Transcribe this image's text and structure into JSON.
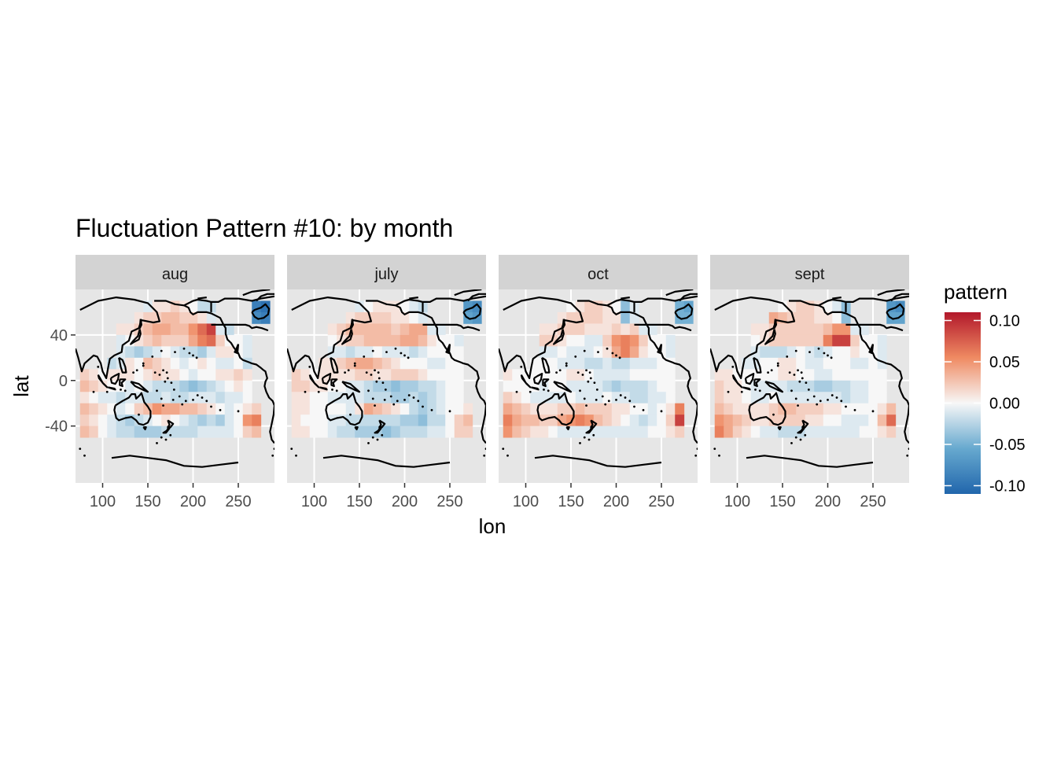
{
  "chart_data": {
    "type": "heatmap",
    "title": "Fluctuation Pattern #10: by month",
    "xlabel": "lon",
    "ylabel": "lat",
    "panels": [
      "aug",
      "july",
      "oct",
      "sept"
    ],
    "xlim": [
      70,
      290
    ],
    "ylim": [
      -90,
      80
    ],
    "x_ticks": [
      100,
      150,
      200,
      250
    ],
    "y_ticks": [
      40,
      0,
      -40
    ],
    "cell_width_lon": 10,
    "cell_height_lat": 10,
    "grid_lon_start": 75,
    "grid_lat_top": 70,
    "legend": {
      "title": "pattern",
      "ticks": [
        "0.10",
        "0.05",
        "0.00",
        "-0.05",
        "-0.10"
      ],
      "limits": [
        -0.11,
        0.11
      ],
      "placement": "right"
    },
    "colors": {
      "low": "#2166ac",
      "mid": "#f7f7f7",
      "high": "#b2182b",
      "panel_bg": "#e6e6e6",
      "strip_bg": "#d3d3d3",
      "grid": "#ffffff",
      "coast": "#000000"
    },
    "cells": {
      "aug": [
        [
          null,
          null,
          null,
          null,
          null,
          null,
          null,
          -0.01,
          0.01,
          0.01,
          0.02,
          0.01,
          0.0,
          -0.02,
          -0.02,
          null,
          null,
          null,
          null,
          -0.09,
          -0.1
        ],
        [
          null,
          null,
          null,
          null,
          null,
          null,
          0.01,
          0.02,
          0.02,
          0.03,
          0.03,
          0.02,
          0.02,
          0.01,
          -0.01,
          null,
          null,
          null,
          null,
          -0.08,
          -0.09
        ],
        [
          null,
          null,
          null,
          null,
          0.01,
          0.01,
          0.02,
          0.03,
          0.04,
          0.04,
          0.03,
          0.03,
          0.05,
          0.07,
          0.09,
          -0.01,
          -0.02,
          null,
          null,
          null,
          null
        ],
        [
          null,
          null,
          null,
          null,
          -0.01,
          0.0,
          0.01,
          0.02,
          0.03,
          0.02,
          0.02,
          0.02,
          0.04,
          0.06,
          0.07,
          0.02,
          0.0,
          0.0,
          -0.01,
          null,
          null
        ],
        [
          null,
          null,
          null,
          null,
          -0.01,
          -0.02,
          -0.03,
          -0.02,
          -0.01,
          0.0,
          -0.01,
          -0.02,
          -0.02,
          -0.03,
          -0.01,
          0.01,
          0.01,
          0.0,
          -0.01,
          null,
          null
        ],
        [
          null,
          null,
          null,
          -0.02,
          -0.01,
          0.01,
          0.0,
          0.03,
          0.02,
          0.01,
          0.0,
          -0.01,
          0.0,
          0.01,
          0.0,
          -0.01,
          -0.01,
          0.0,
          -0.02,
          null,
          null
        ],
        [
          0.02,
          0.01,
          0.0,
          0.01,
          0.01,
          0.01,
          0.0,
          0.01,
          0.02,
          0.01,
          0.01,
          0.0,
          -0.01,
          0.0,
          0.0,
          0.01,
          0.01,
          0.02,
          0.01,
          null,
          null
        ],
        [
          0.03,
          0.02,
          0.01,
          0.0,
          0.0,
          -0.01,
          0.0,
          -0.01,
          -0.02,
          -0.02,
          -0.02,
          -0.03,
          -0.04,
          -0.03,
          -0.02,
          -0.01,
          0.0,
          0.01,
          0.0,
          null,
          null
        ],
        [
          0.01,
          0.0,
          -0.01,
          -0.01,
          -0.02,
          -0.01,
          -0.01,
          -0.02,
          -0.02,
          -0.01,
          -0.02,
          -0.02,
          -0.01,
          -0.01,
          -0.01,
          -0.02,
          -0.01,
          -0.01,
          0.0,
          null,
          null
        ],
        [
          0.03,
          0.02,
          0.01,
          0.0,
          -0.01,
          0.0,
          0.02,
          0.03,
          0.05,
          0.04,
          0.04,
          0.03,
          0.03,
          0.02,
          0.01,
          0.0,
          -0.01,
          0.0,
          0.01,
          0.02,
          null
        ],
        [
          0.02,
          0.01,
          0.0,
          -0.01,
          -0.02,
          -0.03,
          -0.02,
          -0.01,
          0.0,
          0.01,
          0.0,
          -0.01,
          -0.02,
          -0.03,
          -0.02,
          -0.03,
          -0.01,
          0.0,
          0.05,
          0.06,
          null
        ],
        [
          0.03,
          0.02,
          0.0,
          -0.01,
          -0.02,
          -0.02,
          -0.03,
          -0.03,
          -0.03,
          -0.02,
          -0.02,
          -0.02,
          -0.02,
          -0.01,
          -0.01,
          -0.01,
          -0.01,
          0.0,
          0.02,
          0.03,
          null
        ]
      ],
      "july": [
        [
          null,
          null,
          null,
          null,
          null,
          null,
          null,
          -0.01,
          0.0,
          0.01,
          0.01,
          0.01,
          0.0,
          -0.01,
          -0.02,
          null,
          null,
          null,
          null,
          -0.07,
          -0.08
        ],
        [
          null,
          null,
          null,
          null,
          null,
          null,
          0.01,
          0.02,
          0.02,
          0.02,
          0.02,
          0.01,
          0.01,
          0.0,
          -0.01,
          null,
          null,
          null,
          null,
          -0.06,
          -0.07
        ],
        [
          null,
          null,
          null,
          null,
          0.01,
          0.02,
          0.03,
          0.03,
          0.03,
          0.03,
          0.03,
          0.02,
          0.03,
          0.04,
          0.04,
          -0.01,
          -0.01,
          null,
          null,
          null,
          null
        ],
        [
          null,
          null,
          null,
          null,
          0.0,
          0.01,
          0.02,
          0.02,
          0.03,
          0.03,
          0.03,
          0.03,
          0.04,
          0.04,
          0.03,
          0.01,
          0.0,
          0.0,
          -0.01,
          null,
          null
        ],
        [
          null,
          null,
          null,
          null,
          -0.01,
          -0.01,
          -0.02,
          -0.01,
          -0.01,
          0.0,
          -0.01,
          -0.01,
          -0.01,
          -0.02,
          -0.01,
          0.0,
          0.0,
          0.0,
          0.0,
          null,
          null
        ],
        [
          null,
          null,
          null,
          0.01,
          0.01,
          0.02,
          0.03,
          0.04,
          0.04,
          0.03,
          0.02,
          0.01,
          0.0,
          0.0,
          0.0,
          -0.01,
          -0.01,
          0.0,
          0.0,
          null,
          null
        ],
        [
          0.02,
          0.01,
          0.0,
          0.01,
          0.01,
          0.01,
          0.01,
          0.02,
          0.02,
          0.01,
          0.01,
          0.02,
          0.02,
          0.02,
          0.01,
          0.0,
          0.0,
          0.0,
          0.0,
          null,
          null
        ],
        [
          0.02,
          0.02,
          0.01,
          0.01,
          0.0,
          0.0,
          -0.01,
          -0.01,
          -0.02,
          -0.03,
          -0.03,
          -0.04,
          -0.03,
          -0.03,
          -0.02,
          -0.02,
          -0.01,
          0.0,
          0.0,
          null,
          null
        ],
        [
          0.01,
          0.01,
          0.0,
          0.0,
          -0.01,
          -0.01,
          -0.01,
          -0.01,
          -0.02,
          -0.02,
          -0.02,
          -0.03,
          -0.03,
          -0.02,
          -0.03,
          -0.02,
          -0.01,
          0.0,
          0.0,
          null,
          null
        ],
        [
          0.01,
          0.01,
          0.0,
          0.0,
          0.0,
          0.0,
          -0.01,
          0.01,
          0.04,
          0.03,
          0.02,
          0.01,
          0.0,
          -0.02,
          -0.03,
          -0.02,
          -0.01,
          0.0,
          0.0,
          0.01,
          null
        ],
        [
          0.01,
          0.0,
          0.0,
          0.0,
          -0.01,
          -0.01,
          -0.02,
          -0.02,
          -0.02,
          -0.02,
          -0.02,
          -0.02,
          -0.03,
          -0.03,
          -0.04,
          -0.02,
          -0.02,
          0.0,
          0.02,
          0.03,
          null
        ],
        [
          0.01,
          0.01,
          0.0,
          0.0,
          -0.01,
          -0.02,
          -0.02,
          -0.03,
          -0.03,
          -0.03,
          -0.04,
          -0.03,
          -0.02,
          -0.02,
          -0.02,
          -0.01,
          -0.01,
          0.0,
          0.02,
          0.02,
          null
        ]
      ],
      "oct": [
        [
          null,
          null,
          null,
          null,
          null,
          null,
          null,
          0.0,
          0.01,
          0.02,
          0.02,
          0.01,
          0.0,
          -0.04,
          -0.01,
          null,
          null,
          null,
          null,
          -0.05,
          -0.06
        ],
        [
          null,
          null,
          null,
          null,
          null,
          null,
          0.01,
          0.02,
          0.02,
          0.02,
          0.02,
          0.01,
          0.01,
          -0.04,
          -0.01,
          null,
          null,
          null,
          null,
          -0.05,
          -0.05
        ],
        [
          null,
          null,
          null,
          null,
          0.01,
          0.01,
          0.02,
          0.02,
          0.02,
          0.01,
          0.01,
          0.01,
          0.02,
          0.01,
          0.02,
          -0.01,
          -0.01,
          null,
          null,
          null,
          null
        ],
        [
          null,
          null,
          null,
          null,
          0.02,
          0.02,
          0.01,
          0.0,
          0.0,
          -0.01,
          -0.01,
          0.02,
          0.05,
          0.06,
          0.05,
          0.02,
          0.0,
          0.0,
          -0.01,
          null,
          null
        ],
        [
          null,
          null,
          null,
          null,
          -0.01,
          -0.01,
          0.0,
          -0.01,
          -0.01,
          -0.01,
          0.0,
          0.01,
          0.04,
          0.06,
          0.04,
          0.01,
          0.0,
          0.0,
          -0.01,
          null,
          null
        ],
        [
          null,
          null,
          null,
          0.0,
          0.0,
          0.0,
          -0.01,
          -0.01,
          -0.01,
          -0.02,
          -0.02,
          -0.01,
          -0.02,
          -0.02,
          -0.01,
          -0.01,
          -0.01,
          0.0,
          0.0,
          null,
          null
        ],
        [
          0.01,
          0.0,
          0.0,
          0.0,
          0.0,
          0.0,
          0.0,
          0.01,
          0.01,
          0.0,
          -0.01,
          -0.01,
          -0.01,
          -0.01,
          0.0,
          0.0,
          0.0,
          0.0,
          0.0,
          null,
          null
        ],
        [
          0.0,
          0.0,
          0.0,
          0.0,
          -0.01,
          0.0,
          0.0,
          -0.01,
          -0.01,
          -0.01,
          -0.01,
          -0.02,
          -0.03,
          -0.02,
          -0.02,
          -0.02,
          -0.01,
          0.0,
          0.0,
          null,
          null
        ],
        [
          0.02,
          0.01,
          0.0,
          -0.01,
          -0.01,
          -0.01,
          -0.01,
          0.0,
          -0.01,
          -0.01,
          -0.01,
          0.0,
          -0.01,
          -0.01,
          -0.02,
          -0.02,
          -0.01,
          -0.01,
          0.0,
          null,
          null
        ],
        [
          0.04,
          0.03,
          0.02,
          0.01,
          0.01,
          0.01,
          0.02,
          0.02,
          0.03,
          0.02,
          0.02,
          0.02,
          0.01,
          0.01,
          0.0,
          0.0,
          -0.01,
          0.0,
          0.01,
          0.06,
          null
        ],
        [
          0.06,
          0.04,
          0.03,
          0.03,
          0.02,
          0.02,
          0.04,
          0.05,
          0.06,
          0.05,
          0.03,
          0.02,
          0.01,
          0.0,
          -0.01,
          -0.02,
          -0.01,
          0.0,
          0.02,
          0.09,
          null
        ],
        [
          0.05,
          0.03,
          0.02,
          0.01,
          0.01,
          0.0,
          -0.01,
          -0.01,
          -0.01,
          -0.01,
          -0.01,
          -0.01,
          -0.01,
          -0.01,
          -0.01,
          -0.01,
          0.0,
          0.0,
          0.01,
          0.02,
          null
        ]
      ],
      "sept": [
        [
          null,
          null,
          null,
          null,
          null,
          null,
          null,
          0.0,
          0.01,
          0.02,
          0.02,
          0.01,
          0.0,
          -0.01,
          -0.04,
          null,
          null,
          null,
          null,
          -0.07,
          -0.08
        ],
        [
          null,
          null,
          null,
          null,
          null,
          null,
          0.04,
          0.03,
          0.02,
          0.02,
          0.02,
          0.01,
          0.01,
          0.0,
          -0.04,
          null,
          null,
          null,
          null,
          -0.06,
          -0.06
        ],
        [
          null,
          null,
          null,
          null,
          0.01,
          0.01,
          0.02,
          0.02,
          0.02,
          0.02,
          0.02,
          0.02,
          0.03,
          0.05,
          0.05,
          -0.01,
          -0.01,
          null,
          null,
          null,
          null
        ],
        [
          null,
          null,
          null,
          null,
          0.0,
          0.01,
          0.02,
          0.02,
          0.02,
          0.02,
          0.02,
          0.02,
          0.06,
          0.09,
          0.09,
          0.02,
          0.0,
          0.0,
          -0.01,
          null,
          null
        ],
        [
          null,
          null,
          null,
          null,
          -0.01,
          -0.02,
          -0.02,
          -0.02,
          -0.01,
          0.0,
          -0.01,
          -0.02,
          -0.01,
          0.0,
          0.0,
          0.01,
          0.0,
          0.0,
          -0.01,
          null,
          null
        ],
        [
          null,
          null,
          null,
          -0.01,
          -0.01,
          0.0,
          0.0,
          0.01,
          0.01,
          0.0,
          -0.01,
          -0.01,
          0.0,
          0.0,
          0.0,
          -0.01,
          -0.01,
          0.0,
          -0.01,
          null,
          null
        ],
        [
          0.01,
          0.01,
          0.0,
          0.0,
          0.0,
          0.0,
          0.0,
          0.01,
          0.01,
          0.0,
          0.0,
          -0.01,
          -0.01,
          0.0,
          0.0,
          0.0,
          0.0,
          0.0,
          0.0,
          null,
          null
        ],
        [
          0.02,
          0.01,
          0.01,
          0.0,
          -0.01,
          -0.01,
          -0.01,
          -0.01,
          -0.02,
          -0.02,
          -0.02,
          -0.03,
          -0.03,
          -0.02,
          -0.02,
          -0.01,
          -0.01,
          0.0,
          0.0,
          null,
          null
        ],
        [
          0.02,
          0.01,
          0.01,
          0.0,
          -0.01,
          -0.01,
          0.0,
          -0.01,
          -0.01,
          -0.01,
          -0.01,
          -0.01,
          -0.01,
          -0.01,
          -0.02,
          -0.01,
          -0.01,
          0.0,
          0.0,
          null,
          null
        ],
        [
          0.03,
          0.02,
          0.01,
          0.01,
          0.01,
          0.01,
          0.02,
          0.03,
          0.03,
          0.02,
          0.02,
          0.02,
          0.01,
          0.01,
          0.0,
          0.0,
          0.0,
          0.0,
          0.01,
          0.03,
          null
        ],
        [
          0.05,
          0.04,
          0.03,
          0.02,
          0.01,
          0.01,
          0.02,
          0.02,
          0.02,
          0.02,
          0.01,
          0.01,
          0.0,
          0.0,
          -0.01,
          -0.01,
          -0.01,
          0.0,
          0.03,
          0.07,
          null
        ],
        [
          0.06,
          0.04,
          0.02,
          0.01,
          0.0,
          -0.01,
          -0.01,
          -0.02,
          -0.02,
          -0.02,
          -0.01,
          -0.01,
          -0.01,
          -0.01,
          -0.01,
          -0.01,
          0.0,
          0.0,
          0.01,
          0.02,
          null
        ]
      ]
    }
  }
}
